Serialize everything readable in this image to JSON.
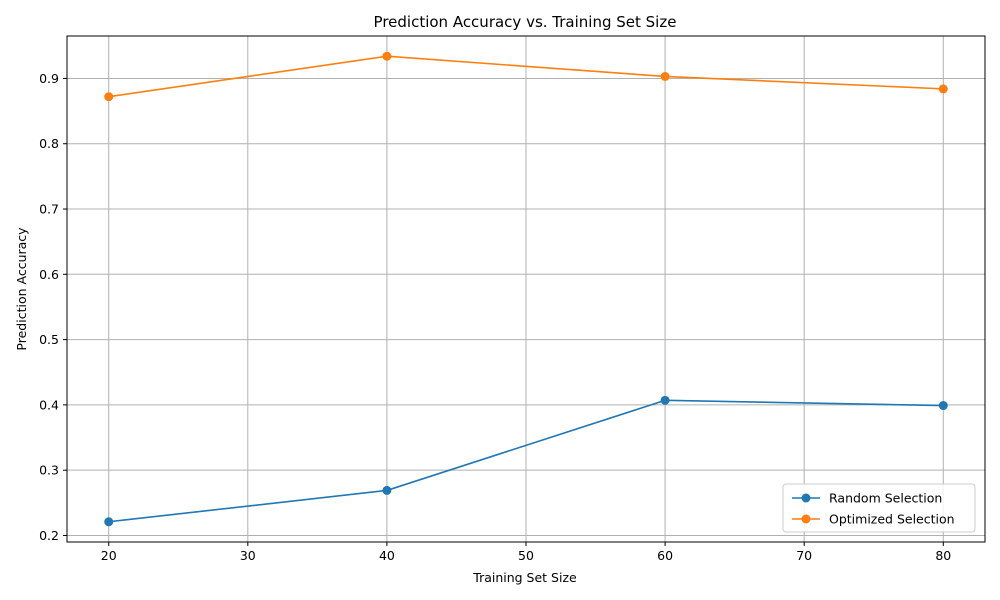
{
  "chart_data": {
    "type": "line",
    "title": "Prediction Accuracy vs. Training Set Size",
    "xlabel": "Training Set Size",
    "ylabel": "Prediction Accuracy",
    "x": [
      20,
      40,
      60,
      80
    ],
    "series": [
      {
        "name": "Random Selection",
        "color": "#1f77b4",
        "values": [
          0.221,
          0.269,
          0.407,
          0.399
        ]
      },
      {
        "name": "Optimized Selection",
        "color": "#ff7f0e",
        "values": [
          0.872,
          0.934,
          0.903,
          0.884
        ]
      }
    ],
    "xlim": [
      17,
      83
    ],
    "ylim": [
      0.19,
      0.965
    ],
    "xticks": [
      20,
      30,
      40,
      50,
      60,
      70,
      80
    ],
    "yticks": [
      0.2,
      0.3,
      0.4,
      0.5,
      0.6,
      0.7,
      0.8,
      0.9
    ],
    "grid": true,
    "legend_position": "lower-right",
    "marker": "circle"
  }
}
